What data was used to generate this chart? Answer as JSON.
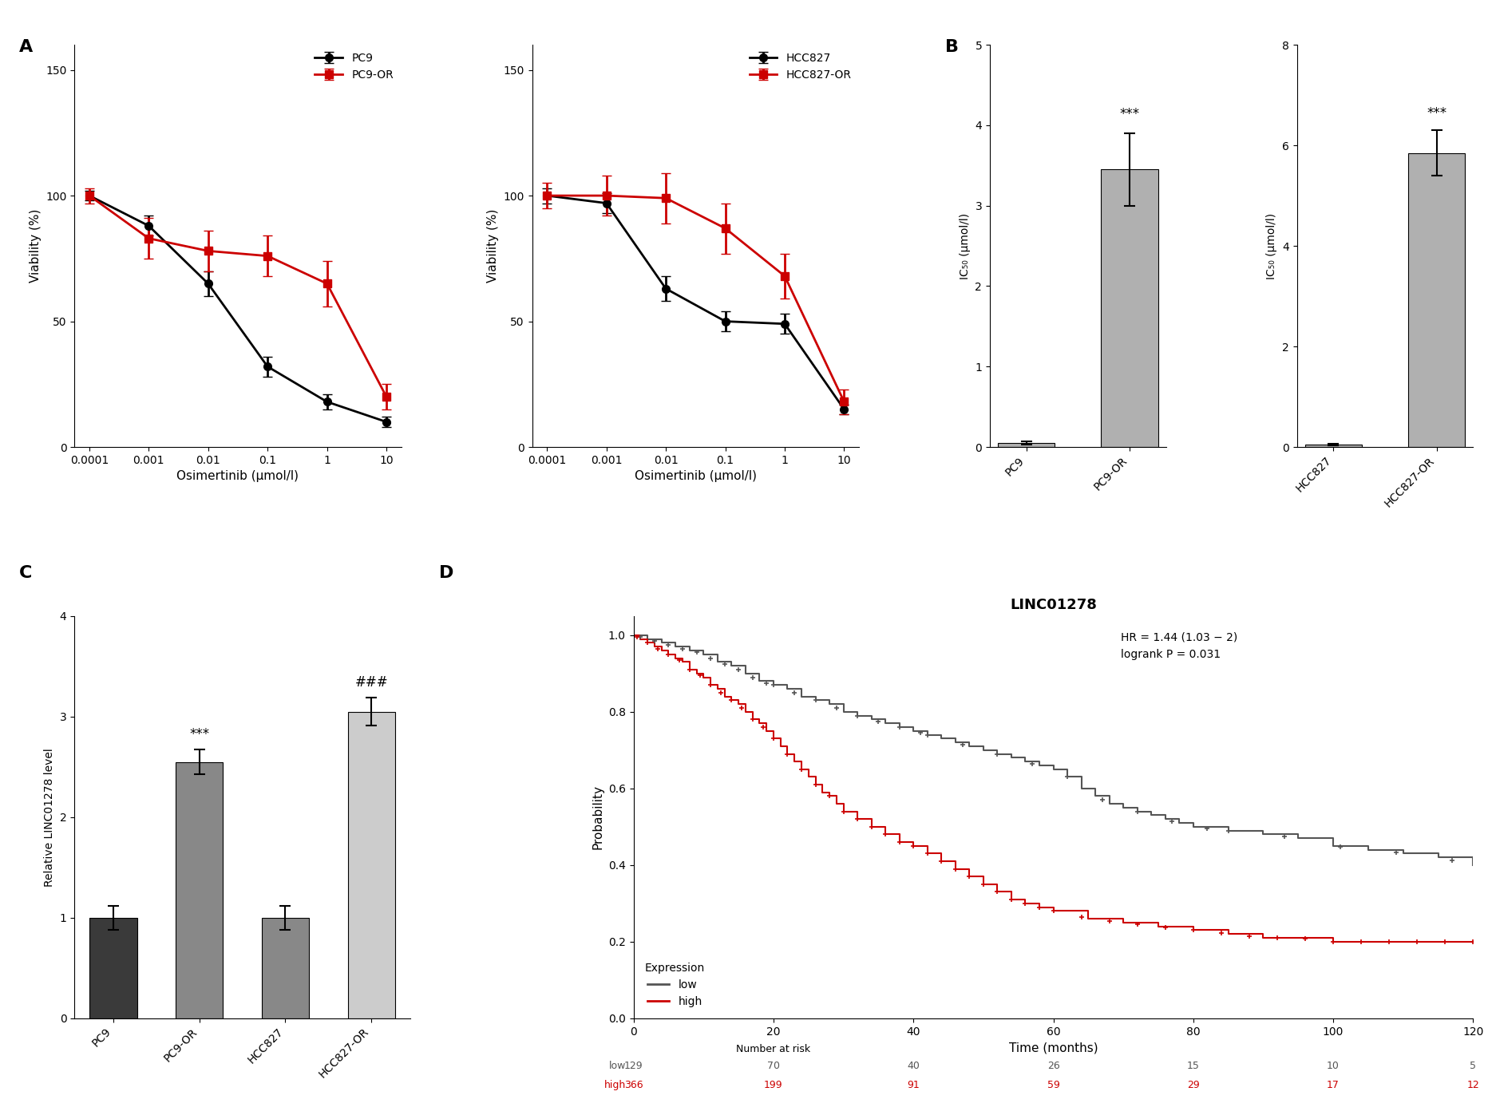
{
  "panel_A1": {
    "xlabel": "Osimertinib (μmol/l)",
    "ylabel": "Viability (%)",
    "x_labels": [
      "0.0001",
      "0.001",
      "0.01",
      "0.1",
      "1",
      "10"
    ],
    "PC9_y": [
      100,
      88,
      65,
      32,
      18,
      10
    ],
    "PC9_err": [
      2,
      4,
      5,
      4,
      3,
      2
    ],
    "PC9OR_y": [
      100,
      83,
      78,
      76,
      65,
      20
    ],
    "PC9OR_err": [
      3,
      8,
      8,
      8,
      9,
      5
    ],
    "ylim": [
      0,
      160
    ],
    "yticks": [
      0,
      50,
      100,
      150
    ],
    "legend": [
      "PC9",
      "PC9-OR"
    ]
  },
  "panel_A2": {
    "xlabel": "Osimertinib (μmol/l)",
    "ylabel": "Viability (%)",
    "x_labels": [
      "0.0001",
      "0.001",
      "0.01",
      "0.1",
      "1",
      "10"
    ],
    "HCC827_y": [
      100,
      97,
      63,
      50,
      49,
      15
    ],
    "HCC827_err": [
      3,
      4,
      5,
      4,
      4,
      2
    ],
    "HCC827OR_y": [
      100,
      100,
      99,
      87,
      68,
      18
    ],
    "HCC827OR_err": [
      5,
      8,
      10,
      10,
      9,
      5
    ],
    "ylim": [
      0,
      160
    ],
    "yticks": [
      0,
      50,
      100,
      150
    ],
    "legend": [
      "HCC827",
      "HCC827-OR"
    ]
  },
  "panel_B1": {
    "categories": [
      "PC9",
      "PC9-OR"
    ],
    "values": [
      0.05,
      3.45
    ],
    "errors": [
      0.02,
      0.45
    ],
    "ylabel": "IC₅₀ (μmol/l)",
    "ylim": [
      0,
      5
    ],
    "yticks": [
      0,
      1,
      2,
      3,
      4,
      5
    ],
    "bar_color": "#b0b0b0",
    "sig_text": "***"
  },
  "panel_B2": {
    "categories": [
      "HCC827",
      "HCC827-OR"
    ],
    "values": [
      0.05,
      5.85
    ],
    "errors": [
      0.02,
      0.45
    ],
    "ylabel": "IC₅₀ (μmol/l)",
    "ylim": [
      0,
      8
    ],
    "yticks": [
      0,
      2,
      4,
      6,
      8
    ],
    "bar_color": "#b0b0b0",
    "sig_text": "***"
  },
  "panel_C": {
    "categories": [
      "PC9",
      "PC9-OR",
      "HCC827",
      "HCC827-OR"
    ],
    "values": [
      1.0,
      2.55,
      1.0,
      3.05
    ],
    "errors": [
      0.12,
      0.12,
      0.12,
      0.14
    ],
    "ylabel": "Relative LINC01278 level",
    "ylim": [
      0,
      4
    ],
    "yticks": [
      0,
      1,
      2,
      3,
      4
    ],
    "bar_colors": [
      "#3a3a3a",
      "#888888",
      "#888888",
      "#cccccc"
    ],
    "sig_text_1": "***",
    "sig_text_2": "###"
  },
  "panel_D": {
    "title": "LINC01278",
    "xlabel": "Time (months)",
    "ylabel": "Probability",
    "xlim": [
      0,
      120
    ],
    "ylim": [
      0.0,
      1.05
    ],
    "xticks": [
      0,
      20,
      40,
      60,
      80,
      100,
      120
    ],
    "yticks": [
      0.0,
      0.2,
      0.4,
      0.6,
      0.8,
      1.0
    ],
    "annotation": "HR = 1.44 (1.03 − 2)\nlogrank P = 0.031",
    "legend_low": "low",
    "legend_high": "high",
    "low_color": "#555555",
    "high_color": "#cc0000",
    "low_t": [
      0,
      2,
      4,
      6,
      8,
      10,
      12,
      14,
      16,
      18,
      20,
      22,
      24,
      26,
      28,
      30,
      32,
      34,
      36,
      38,
      40,
      42,
      44,
      46,
      48,
      50,
      52,
      54,
      56,
      58,
      60,
      62,
      64,
      66,
      68,
      70,
      72,
      74,
      76,
      78,
      80,
      85,
      90,
      95,
      100,
      105,
      110,
      115,
      120
    ],
    "low_s": [
      1.0,
      0.99,
      0.98,
      0.97,
      0.96,
      0.95,
      0.93,
      0.92,
      0.9,
      0.88,
      0.87,
      0.86,
      0.84,
      0.83,
      0.82,
      0.8,
      0.79,
      0.78,
      0.77,
      0.76,
      0.75,
      0.74,
      0.73,
      0.72,
      0.71,
      0.7,
      0.69,
      0.68,
      0.67,
      0.66,
      0.65,
      0.63,
      0.6,
      0.58,
      0.56,
      0.55,
      0.54,
      0.53,
      0.52,
      0.51,
      0.5,
      0.49,
      0.48,
      0.47,
      0.45,
      0.44,
      0.43,
      0.42,
      0.4
    ],
    "high_t": [
      0,
      1,
      2,
      3,
      4,
      5,
      6,
      7,
      8,
      9,
      10,
      11,
      12,
      13,
      14,
      15,
      16,
      17,
      18,
      19,
      20,
      21,
      22,
      23,
      24,
      25,
      26,
      27,
      28,
      29,
      30,
      32,
      34,
      36,
      38,
      40,
      42,
      44,
      46,
      48,
      50,
      52,
      54,
      56,
      58,
      60,
      65,
      70,
      75,
      80,
      85,
      90,
      95,
      100,
      105,
      110,
      115,
      120
    ],
    "high_s": [
      1.0,
      0.99,
      0.98,
      0.97,
      0.96,
      0.95,
      0.94,
      0.93,
      0.91,
      0.9,
      0.89,
      0.87,
      0.86,
      0.84,
      0.83,
      0.82,
      0.8,
      0.78,
      0.77,
      0.75,
      0.73,
      0.71,
      0.69,
      0.67,
      0.65,
      0.63,
      0.61,
      0.59,
      0.58,
      0.56,
      0.54,
      0.52,
      0.5,
      0.48,
      0.46,
      0.45,
      0.43,
      0.41,
      0.39,
      0.37,
      0.35,
      0.33,
      0.31,
      0.3,
      0.29,
      0.28,
      0.26,
      0.25,
      0.24,
      0.23,
      0.22,
      0.21,
      0.21,
      0.2,
      0.2,
      0.2,
      0.2,
      0.2
    ],
    "risk_table": {
      "timepoints": [
        0,
        20,
        40,
        60,
        80,
        100,
        120
      ],
      "low": [
        129,
        70,
        40,
        26,
        15,
        10,
        5
      ],
      "high": [
        366,
        199,
        91,
        59,
        29,
        17,
        12
      ]
    }
  }
}
